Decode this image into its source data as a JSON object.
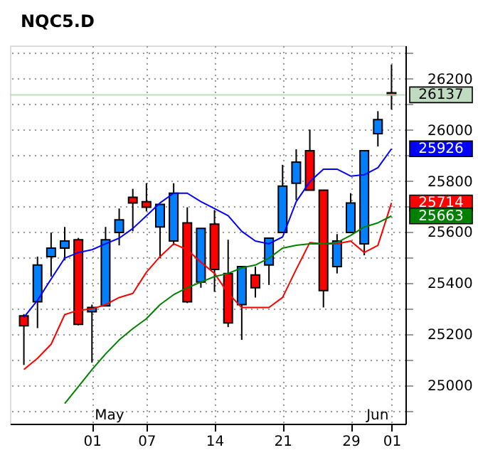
{
  "chart_data": {
    "type": "candlestick",
    "title": "NQC5.D",
    "categories": [
      null,
      null,
      null,
      null,
      null,
      "01",
      null,
      null,
      null,
      "07",
      null,
      null,
      null,
      null,
      "14",
      null,
      null,
      null,
      null,
      "21",
      null,
      null,
      null,
      null,
      "29",
      null,
      null,
      "01"
    ],
    "ohlc": [
      [
        25272,
        25279,
        25080,
        25233
      ],
      [
        25327,
        25504,
        25224,
        25471
      ],
      [
        25504,
        25598,
        25426,
        25537
      ],
      [
        25537,
        25620,
        25489,
        25565
      ],
      [
        25570,
        25577,
        25235,
        25239
      ],
      [
        25288,
        25316,
        25089,
        25305
      ],
      [
        25311,
        25620,
        25311,
        25570
      ],
      [
        25598,
        25692,
        25548,
        25648
      ],
      [
        25736,
        25769,
        25603,
        25714
      ],
      [
        25719,
        25791,
        25681,
        25697
      ],
      [
        25620,
        25708,
        25498,
        25708
      ],
      [
        25565,
        25791,
        25548,
        25752
      ],
      [
        25636,
        25697,
        25322,
        25327
      ],
      [
        25404,
        25614,
        25382,
        25614
      ],
      [
        25631,
        25686,
        25366,
        25454
      ],
      [
        25438,
        25570,
        25228,
        25244
      ],
      [
        25316,
        25465,
        25178,
        25465
      ],
      [
        25432,
        25465,
        25344,
        25382
      ],
      [
        25471,
        25576,
        25393,
        25576
      ],
      [
        25598,
        25863,
        25598,
        25780
      ],
      [
        25791,
        25924,
        25725,
        25874
      ],
      [
        25918,
        26001,
        25764,
        25764
      ],
      [
        25764,
        25764,
        25305,
        25371
      ],
      [
        25465,
        25592,
        25438,
        25565
      ],
      [
        25598,
        25752,
        25598,
        25714
      ],
      [
        25554,
        25918,
        25509,
        25918
      ],
      [
        25985,
        26073,
        25935,
        26040
      ],
      [
        26145,
        26255,
        26080,
        26137
      ]
    ],
    "colors": [
      "#ff0000",
      "#0080ff",
      "#0080ff",
      "#0080ff",
      "#ff0000",
      "#0080ff",
      "#0080ff",
      "#0080ff",
      "#ff0000",
      "#ff0000",
      "#0080ff",
      "#0080ff",
      "#ff0000",
      "#0080ff",
      "#ff0000",
      "#ff0000",
      "#0080ff",
      "#ff0000",
      "#0080ff",
      "#0080ff",
      "#0080ff",
      "#ff0000",
      "#ff0000",
      "#0080ff",
      "#0080ff",
      "#0080ff",
      "#0080ff",
      "#ff0000"
    ],
    "series": [
      {
        "type": "line",
        "color": "#0000ff",
        "values": [
          25266,
          25333,
          25416,
          25498,
          25520,
          25531,
          25554,
          25576,
          25614,
          25664,
          25714,
          25752,
          25752,
          25719,
          25692,
          25664,
          25603,
          25565,
          25554,
          25581,
          25719,
          25797,
          25846,
          25846,
          25819,
          25824,
          25852,
          25926
        ],
        "value_labels": [
          null,
          null,
          null,
          null,
          null,
          null,
          null,
          null,
          null,
          null,
          null,
          null,
          null,
          null,
          null,
          null,
          null,
          null,
          null,
          null,
          null,
          null,
          null,
          null,
          null,
          null,
          null,
          "25926"
        ]
      },
      {
        "type": "line",
        "color": "#ff0000",
        "values": [
          25062,
          25106,
          25161,
          25277,
          25294,
          25299,
          25316,
          25344,
          25360,
          25443,
          25504,
          25554,
          25531,
          25482,
          25438,
          25360,
          25305,
          25305,
          25305,
          25344,
          25454,
          25559,
          25554,
          25554,
          25565,
          25520,
          25548,
          25714
        ],
        "value_labels": [
          null,
          null,
          null,
          null,
          null,
          null,
          null,
          null,
          null,
          null,
          null,
          null,
          null,
          null,
          null,
          null,
          null,
          null,
          null,
          null,
          null,
          null,
          null,
          null,
          null,
          null,
          null,
          "25714"
        ]
      },
      {
        "type": "line",
        "color": "#008000",
        "values": [
          null,
          null,
          null,
          24929,
          24995,
          25062,
          25123,
          25178,
          25222,
          25261,
          25316,
          25355,
          25382,
          25404,
          25426,
          25438,
          25460,
          25471,
          25498,
          25537,
          25548,
          25554,
          25554,
          25559,
          25587,
          25620,
          25636,
          25663
        ],
        "value_labels": [
          null,
          null,
          null,
          null,
          null,
          null,
          null,
          null,
          null,
          null,
          null,
          null,
          null,
          null,
          null,
          null,
          null,
          null,
          null,
          null,
          null,
          null,
          null,
          null,
          null,
          null,
          null,
          "25663"
        ]
      }
    ],
    "ref_lines": [
      {
        "axis": "y",
        "value": 26137,
        "label": "26137",
        "color": "#c0dcc0"
      }
    ],
    "ylim": [
      24850,
      26330
    ],
    "yticks": [
      {
        "value": 24900,
        "label": null
      },
      25000,
      {
        "value": 25100,
        "label": null
      },
      25200,
      {
        "value": 25300,
        "label": null
      },
      25400,
      {
        "value": 25500,
        "label": null
      },
      25600,
      {
        "value": 25700,
        "label": null
      },
      25800,
      {
        "value": 25900,
        "label": null
      },
      26000,
      {
        "value": 26100,
        "label": null
      },
      26200,
      {
        "value": 26300,
        "label": null
      }
    ],
    "grid": true,
    "annotations": [
      "May",
      "Jun"
    ]
  }
}
